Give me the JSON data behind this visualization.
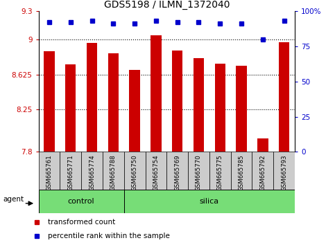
{
  "title": "GDS5198 / ILMN_1372040",
  "samples": [
    "GSM665761",
    "GSM665771",
    "GSM665774",
    "GSM665788",
    "GSM665750",
    "GSM665754",
    "GSM665769",
    "GSM665770",
    "GSM665775",
    "GSM665785",
    "GSM665792",
    "GSM665793"
  ],
  "groups": [
    "control",
    "control",
    "control",
    "control",
    "silica",
    "silica",
    "silica",
    "silica",
    "silica",
    "silica",
    "silica",
    "silica"
  ],
  "transformed_count": [
    8.87,
    8.73,
    8.96,
    8.85,
    8.67,
    9.04,
    8.88,
    8.8,
    8.74,
    8.72,
    7.94,
    8.97
  ],
  "percentile_rank": [
    92,
    92,
    93,
    91,
    91,
    93,
    92,
    92,
    91,
    91,
    80,
    93
  ],
  "ylim_left": [
    7.8,
    9.3
  ],
  "ylim_right": [
    0,
    100
  ],
  "yticks_left": [
    7.8,
    8.25,
    8.625,
    9.0,
    9.3
  ],
  "yticks_right": [
    0,
    25,
    50,
    75,
    100
  ],
  "ytick_labels_left": [
    "7.8",
    "8.25",
    "8.625",
    "9",
    "9.3"
  ],
  "ytick_labels_right": [
    "0",
    "25",
    "50",
    "75",
    "100%"
  ],
  "hlines": [
    9.0,
    8.625,
    8.25
  ],
  "bar_color": "#cc0000",
  "dot_color": "#0000cc",
  "bar_width": 0.5,
  "background_plot": "#ffffff",
  "tick_label_area_color": "#cccccc",
  "control_color": "#77dd77",
  "silica_color": "#77dd77",
  "title_fontsize": 10,
  "axis_label_color_left": "#cc0000",
  "axis_label_color_right": "#0000cc",
  "legend_items": [
    "transformed count",
    "percentile rank within the sample"
  ],
  "legend_colors": [
    "#cc0000",
    "#0000cc"
  ]
}
